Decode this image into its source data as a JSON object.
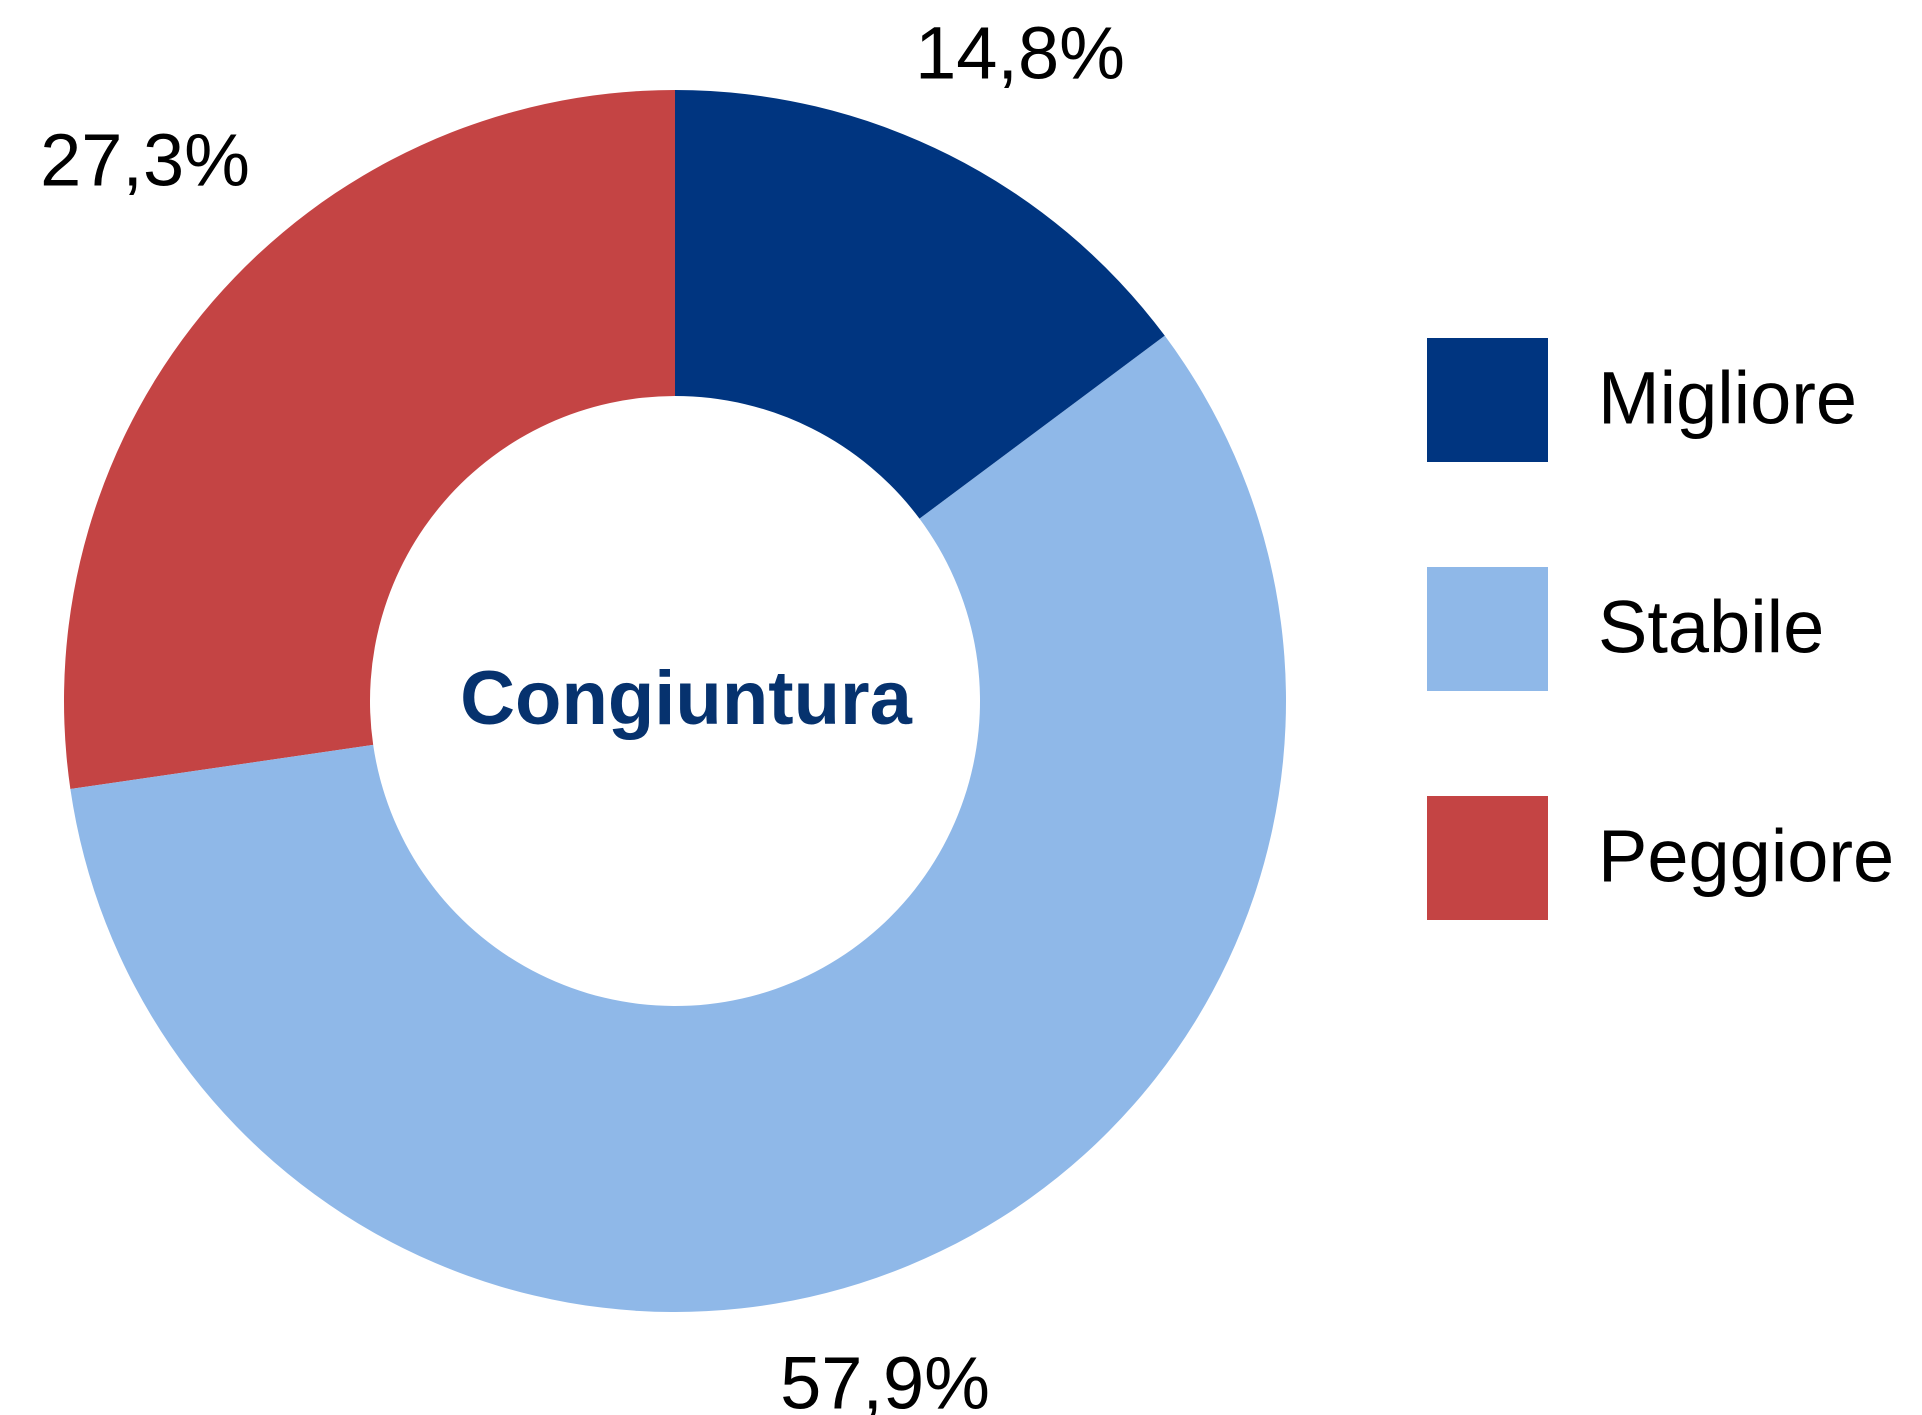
{
  "chart_data": {
    "type": "donut",
    "center_label": "Congiuntura",
    "categories": [
      "Migliore",
      "Stabile",
      "Peggiore"
    ],
    "values": [
      14.8,
      57.9,
      27.3
    ],
    "value_labels": [
      "14,8%",
      "57,9%",
      "27,3%"
    ],
    "colors": [
      "#003580",
      "#8fb8e8",
      "#c44444"
    ],
    "legend": "right"
  }
}
